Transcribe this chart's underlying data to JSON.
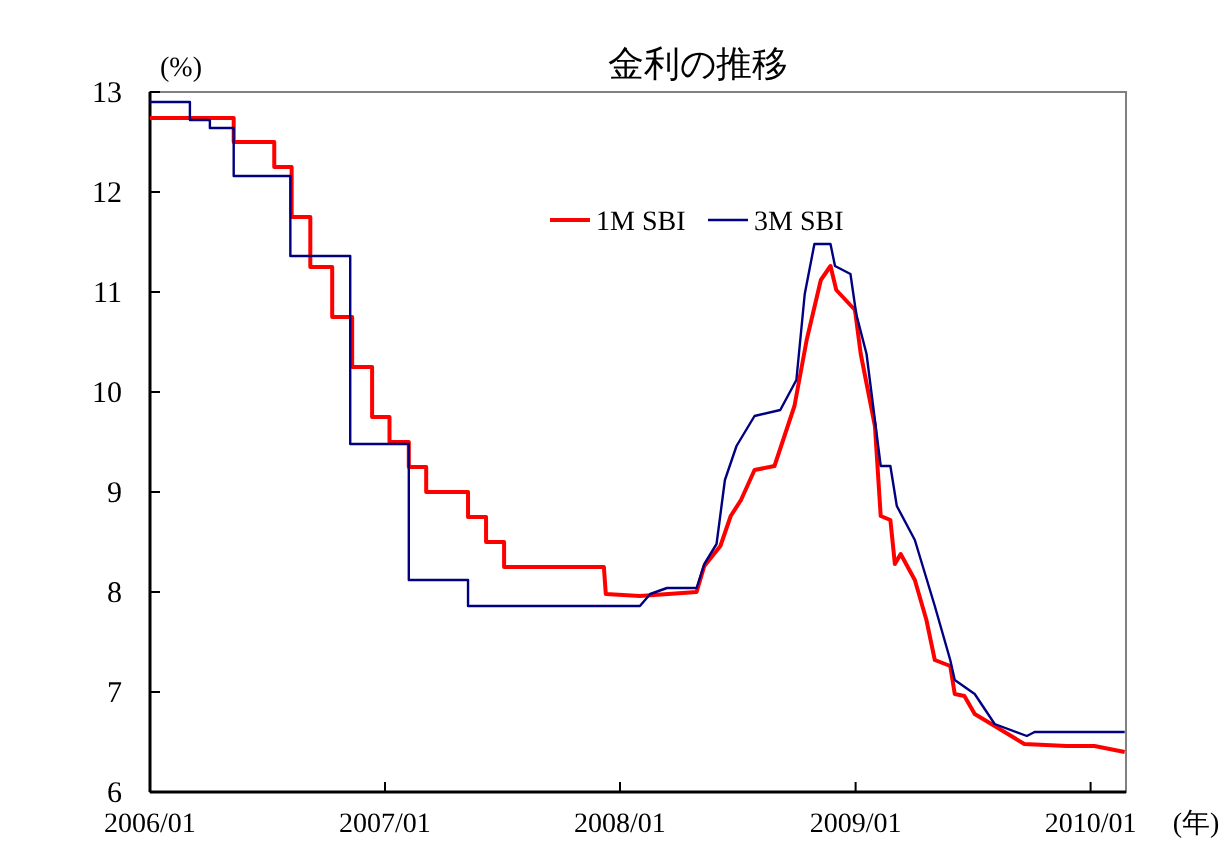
{
  "chart_data": {
    "type": "line",
    "title": "金利の推移",
    "ylabel": "(%)",
    "xlabel": "(年)",
    "xlim": [
      "2006-01-01",
      "2010-02-25"
    ],
    "xticks": [
      {
        "value": "2006-01-01",
        "label": "2006/01"
      },
      {
        "value": "2007-01-01",
        "label": "2007/01"
      },
      {
        "value": "2008-01-01",
        "label": "2008/01"
      },
      {
        "value": "2009-01-01",
        "label": "2009/01"
      },
      {
        "value": "2010-01-01",
        "label": "2010/01"
      }
    ],
    "ylim": [
      6,
      13
    ],
    "yticks": [
      6,
      7,
      8,
      9,
      10,
      11,
      12,
      13
    ],
    "grid": false,
    "legend": "top",
    "line_style": "solid",
    "marker": "none",
    "series": [
      {
        "name": "1M SBI",
        "color": "#ff0000",
        "x": [
          "2006-01-01",
          "2006-05-11",
          "2006-05-11",
          "2006-07-13",
          "2006-07-13",
          "2006-08-09",
          "2006-08-09",
          "2006-09-07",
          "2006-09-07",
          "2006-10-11",
          "2006-10-11",
          "2006-11-11",
          "2006-11-11",
          "2006-12-12",
          "2006-12-12",
          "2007-01-08",
          "2007-01-08",
          "2007-02-07",
          "2007-02-07",
          "2007-03-06",
          "2007-03-06",
          "2007-05-10",
          "2007-05-10",
          "2007-06-07",
          "2007-06-07",
          "2007-07-05",
          "2007-07-05",
          "2007-12-07",
          "2007-12-10",
          "2008-02-01",
          "2008-04-29",
          "2008-05-11",
          "2008-06-05",
          "2008-06-21",
          "2008-07-07",
          "2008-07-28",
          "2008-08-28",
          "2008-09-28",
          "2008-10-17",
          "2008-11-08",
          "2008-11-23",
          "2008-12-02",
          "2008-12-31",
          "2009-01-09",
          "2009-01-31",
          "2009-02-09",
          "2009-02-24",
          "2009-03-03",
          "2009-03-12",
          "2009-04-03",
          "2009-04-21",
          "2009-05-04",
          "2009-05-28",
          "2009-06-04",
          "2009-06-19",
          "2009-07-05",
          "2009-08-05",
          "2009-09-20",
          "2009-11-25",
          "2010-01-07",
          "2010-02-23"
        ],
        "values": [
          12.74,
          12.74,
          12.5,
          12.5,
          12.25,
          12.25,
          11.75,
          11.75,
          11.25,
          11.25,
          10.75,
          10.75,
          10.25,
          10.25,
          9.75,
          9.75,
          9.5,
          9.5,
          9.25,
          9.25,
          9.0,
          9.0,
          8.75,
          8.75,
          8.5,
          8.5,
          8.25,
          8.25,
          7.98,
          7.96,
          8.0,
          8.26,
          8.46,
          8.76,
          8.92,
          9.22,
          9.26,
          9.86,
          10.52,
          11.12,
          11.26,
          11.02,
          10.82,
          10.38,
          9.66,
          8.76,
          8.72,
          8.28,
          8.38,
          8.12,
          7.72,
          7.32,
          7.26,
          6.98,
          6.96,
          6.78,
          6.66,
          6.48,
          6.46,
          6.46,
          6.4
        ]
      },
      {
        "name": "3M SBI",
        "color": "#000080",
        "x": [
          "2006-01-01",
          "2006-03-04",
          "2006-03-04",
          "2006-04-04",
          "2006-04-04",
          "2006-05-11",
          "2006-05-11",
          "2006-08-07",
          "2006-08-07",
          "2006-11-08",
          "2006-11-08",
          "2007-02-07",
          "2007-02-07",
          "2007-05-10",
          "2007-05-10",
          "2008-02-01",
          "2008-02-17",
          "2008-03-14",
          "2008-04-29",
          "2008-05-11",
          "2008-05-30",
          "2008-06-12",
          "2008-06-30",
          "2008-07-28",
          "2008-09-06",
          "2008-10-01",
          "2008-10-14",
          "2008-10-29",
          "2008-11-23",
          "2008-11-30",
          "2008-12-24",
          "2009-01-02",
          "2009-01-18",
          "2009-02-09",
          "2009-02-24",
          "2009-03-06",
          "2009-04-03",
          "2009-05-04",
          "2009-05-28",
          "2009-06-04",
          "2009-07-05",
          "2009-08-05",
          "2009-09-24",
          "2009-10-06",
          "2010-02-23"
        ],
        "values": [
          12.9,
          12.9,
          12.72,
          12.72,
          12.64,
          12.64,
          12.16,
          12.16,
          11.36,
          11.36,
          9.48,
          9.48,
          8.12,
          8.12,
          7.86,
          7.86,
          7.98,
          8.04,
          8.04,
          8.28,
          8.48,
          9.12,
          9.46,
          9.76,
          9.82,
          10.12,
          10.98,
          11.48,
          11.48,
          11.26,
          11.18,
          10.78,
          10.38,
          9.26,
          9.26,
          8.86,
          8.52,
          7.86,
          7.32,
          7.12,
          6.98,
          6.68,
          6.56,
          6.6,
          6.6
        ]
      }
    ]
  }
}
